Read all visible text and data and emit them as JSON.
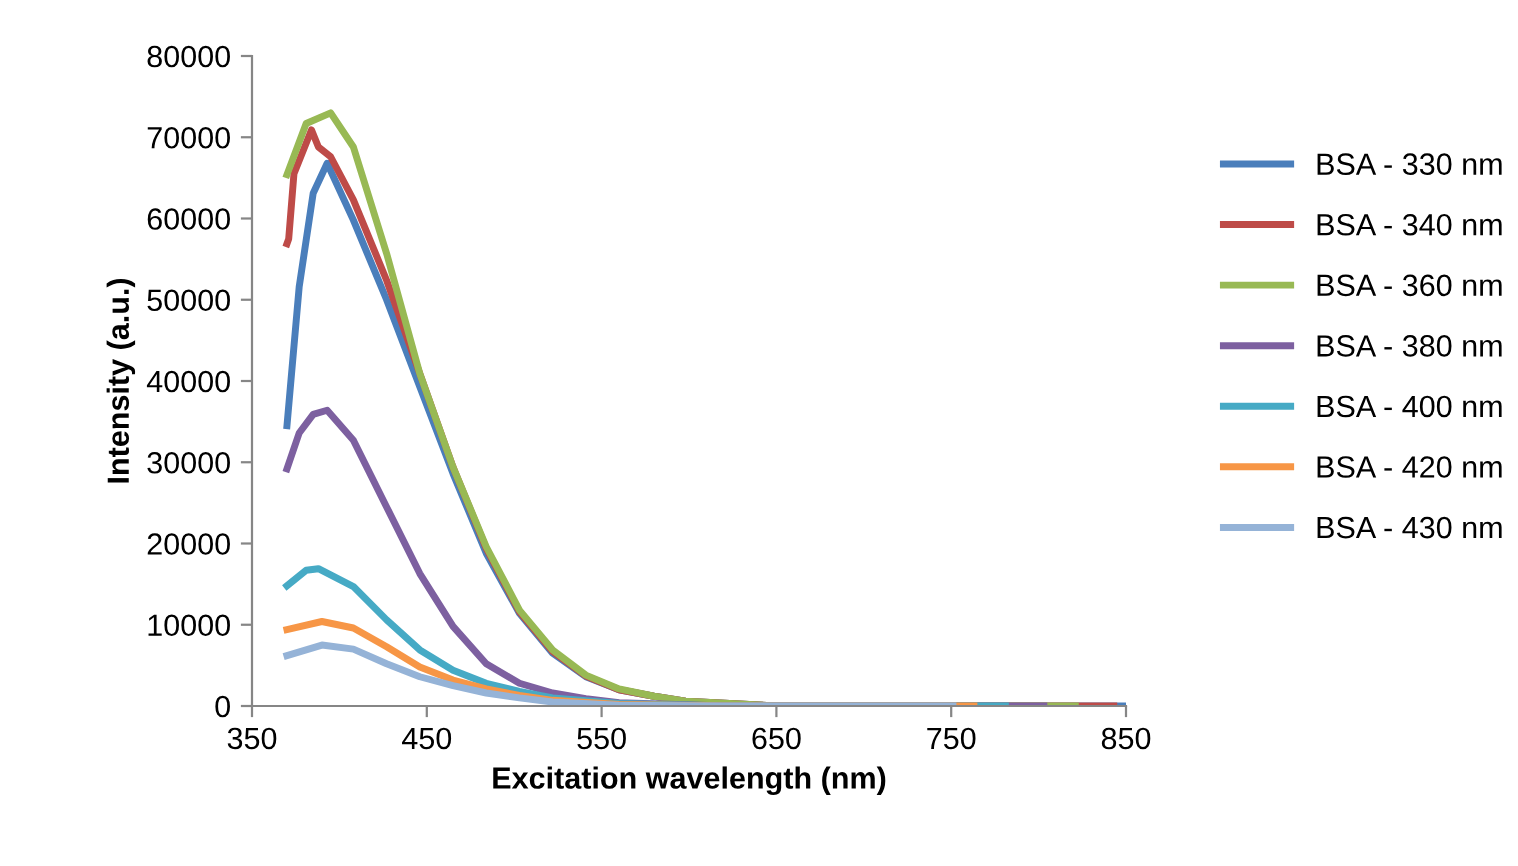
{
  "chart_data": {
    "type": "line",
    "xlabel": "Excitation wavelength (nm)",
    "ylabel": "Intensity (a.u.)",
    "xlim": [
      350,
      850
    ],
    "xticks": [
      350,
      450,
      550,
      650,
      750,
      850
    ],
    "ylim": [
      0,
      80000
    ],
    "yticks": [
      0,
      10000,
      20000,
      30000,
      40000,
      50000,
      60000,
      70000,
      80000
    ],
    "grid": false,
    "legend": "right",
    "marker": "none",
    "line_style": "solid",
    "series": [
      {
        "name": "BSA - 330 nm",
        "color": "#4a7ebb",
        "x": [
          370,
          377,
          385,
          393,
          408,
          427,
          446,
          465,
          484,
          503,
          522,
          541,
          560,
          580,
          598,
          650,
          750,
          850
        ],
        "values": [
          34500,
          51600,
          63100,
          66800,
          59800,
          50000,
          39300,
          28600,
          18800,
          11400,
          6500,
          3600,
          2000,
          1200,
          600,
          0,
          0,
          0
        ]
      },
      {
        "name": "BSA - 340 nm",
        "color": "#be4b48",
        "x": [
          370,
          371,
          374,
          384,
          388,
          395,
          408,
          427,
          446,
          465,
          484,
          503,
          522,
          541,
          560,
          580,
          598,
          650,
          750,
          843
        ],
        "values": [
          56900,
          57500,
          65500,
          70900,
          68800,
          67600,
          62300,
          52400,
          40900,
          29400,
          19400,
          11600,
          6700,
          3700,
          2000,
          1200,
          600,
          0,
          0,
          0
        ]
      },
      {
        "name": "BSA - 360 nm",
        "color": "#98b954",
        "x": [
          370,
          381,
          395,
          408,
          427,
          446,
          465,
          484,
          503,
          522,
          541,
          560,
          580,
          598,
          650,
          750,
          821
        ],
        "values": [
          65400,
          71700,
          73000,
          68800,
          55700,
          40900,
          29400,
          19600,
          11800,
          6900,
          3800,
          2100,
          1200,
          600,
          0,
          0,
          0
        ]
      },
      {
        "name": "BSA - 380 nm",
        "color": "#7d60a0",
        "x": [
          370,
          377,
          385,
          393,
          408,
          427,
          446,
          465,
          484,
          503,
          522,
          541,
          560,
          620,
          700,
          803
        ],
        "values": [
          29200,
          33600,
          35900,
          36400,
          32700,
          24500,
          16300,
          9800,
          5200,
          2800,
          1600,
          900,
          400,
          0,
          0,
          0
        ]
      },
      {
        "name": "BSA - 400 nm",
        "color": "#46aac5",
        "x": [
          370,
          381,
          388,
          408,
          427,
          446,
          465,
          484,
          503,
          522,
          560,
          620,
          700,
          781
        ],
        "values": [
          14800,
          16700,
          16900,
          14700,
          10600,
          6900,
          4400,
          2800,
          1800,
          1000,
          300,
          0,
          0,
          0
        ]
      },
      {
        "name": "BSA - 420 nm",
        "color": "#f79646",
        "x": [
          370,
          390,
          408,
          427,
          446,
          465,
          484,
          503,
          522,
          560,
          620,
          700,
          763
        ],
        "values": [
          9400,
          10400,
          9600,
          7300,
          4800,
          3200,
          2100,
          1300,
          700,
          200,
          0,
          0,
          0
        ]
      },
      {
        "name": "BSA - 430 nm",
        "color": "#95b3d7",
        "x": [
          370,
          390,
          408,
          427,
          446,
          465,
          484,
          503,
          522,
          560,
          620,
          700,
          751
        ],
        "values": [
          6200,
          7500,
          7000,
          5200,
          3600,
          2500,
          1600,
          1000,
          500,
          100,
          0,
          0,
          0
        ]
      }
    ]
  }
}
